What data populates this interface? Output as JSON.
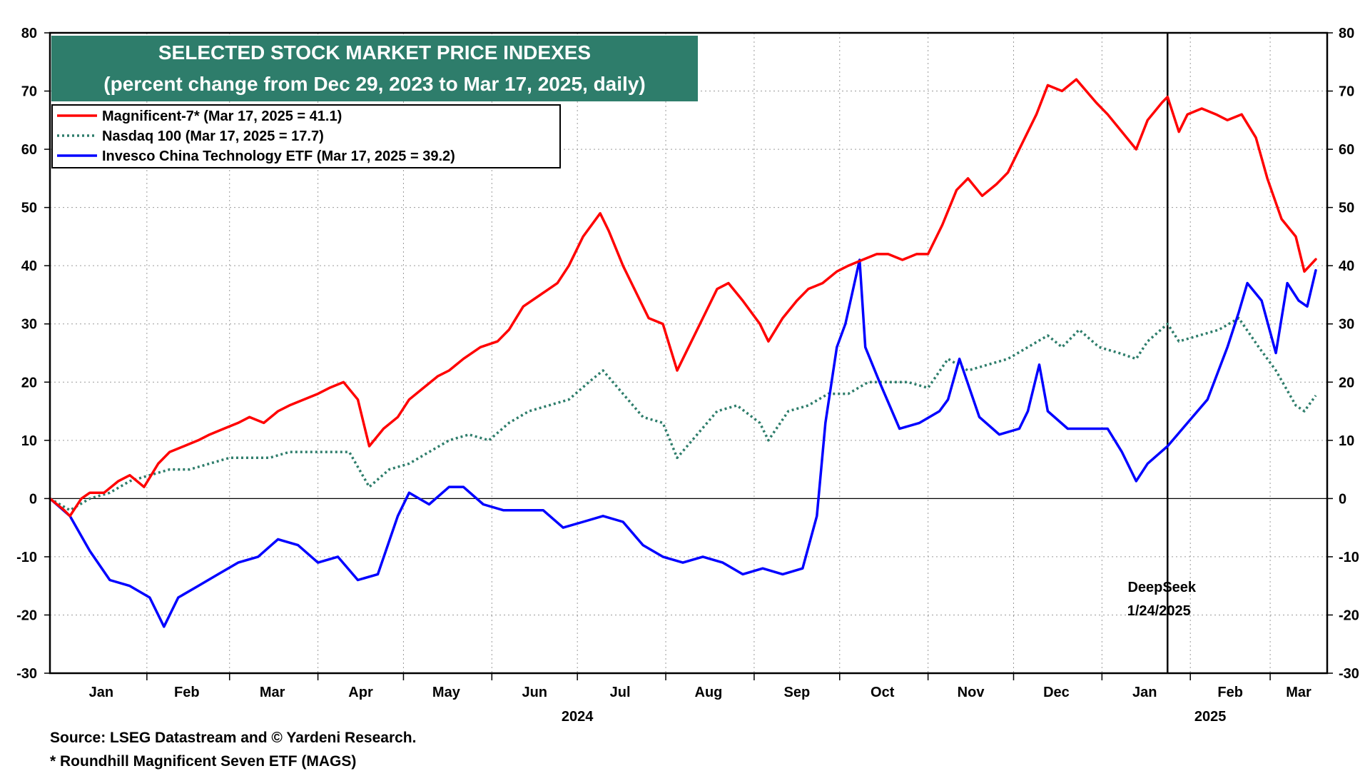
{
  "chart_data": {
    "type": "line",
    "title": "SELECTED STOCK MARKET PRICE INDEXES",
    "subtitle": "(percent change from Dec 29, 2023 to Mar 17, 2025, daily)",
    "ylim": [
      -30,
      80
    ],
    "yticks": [
      80,
      70,
      60,
      50,
      40,
      30,
      20,
      10,
      0,
      -10,
      -20,
      -30
    ],
    "x_range": [
      "2023-12-29",
      "2025-03-21"
    ],
    "month_labels": [
      {
        "label": "Jan",
        "date": "2024-01-16"
      },
      {
        "label": "Feb",
        "date": "2024-02-15"
      },
      {
        "label": "Mar",
        "date": "2024-03-16"
      },
      {
        "label": "Apr",
        "date": "2024-04-16"
      },
      {
        "label": "May",
        "date": "2024-05-16"
      },
      {
        "label": "Jun",
        "date": "2024-06-16"
      },
      {
        "label": "Jul",
        "date": "2024-07-16"
      },
      {
        "label": "Aug",
        "date": "2024-08-16"
      },
      {
        "label": "Sep",
        "date": "2024-09-16"
      },
      {
        "label": "Oct",
        "date": "2024-10-16"
      },
      {
        "label": "Nov",
        "date": "2024-11-16"
      },
      {
        "label": "Dec",
        "date": "2024-12-16"
      },
      {
        "label": "Jan",
        "date": "2025-01-16"
      },
      {
        "label": "Feb",
        "date": "2025-02-15"
      },
      {
        "label": "Mar",
        "date": "2025-03-11"
      }
    ],
    "year_labels": [
      {
        "label": "2024",
        "date": "2024-07-01"
      },
      {
        "label": "2025",
        "date": "2025-02-08"
      }
    ],
    "series": [
      {
        "name": "Magnificent-7* (Mar 17, 2025 = 41.1)",
        "color": "#ff0000",
        "style": "solid",
        "points": [
          [
            "2023-12-29",
            0
          ],
          [
            "2024-01-03",
            -2
          ],
          [
            "2024-01-05",
            -3
          ],
          [
            "2024-01-09",
            0
          ],
          [
            "2024-01-12",
            1
          ],
          [
            "2024-01-17",
            1
          ],
          [
            "2024-01-22",
            3
          ],
          [
            "2024-01-26",
            4
          ],
          [
            "2024-01-31",
            2
          ],
          [
            "2024-02-05",
            6
          ],
          [
            "2024-02-09",
            8
          ],
          [
            "2024-02-14",
            9
          ],
          [
            "2024-02-19",
            10
          ],
          [
            "2024-02-23",
            11
          ],
          [
            "2024-02-28",
            12
          ],
          [
            "2024-03-04",
            13
          ],
          [
            "2024-03-08",
            14
          ],
          [
            "2024-03-13",
            13
          ],
          [
            "2024-03-18",
            15
          ],
          [
            "2024-03-22",
            16
          ],
          [
            "2024-03-27",
            17
          ],
          [
            "2024-04-01",
            18
          ],
          [
            "2024-04-05",
            19
          ],
          [
            "2024-04-10",
            20
          ],
          [
            "2024-04-15",
            17
          ],
          [
            "2024-04-19",
            9
          ],
          [
            "2024-04-24",
            12
          ],
          [
            "2024-04-29",
            14
          ],
          [
            "2024-05-03",
            17
          ],
          [
            "2024-05-08",
            19
          ],
          [
            "2024-05-13",
            21
          ],
          [
            "2024-05-17",
            22
          ],
          [
            "2024-05-22",
            24
          ],
          [
            "2024-05-28",
            26
          ],
          [
            "2024-06-03",
            27
          ],
          [
            "2024-06-07",
            29
          ],
          [
            "2024-06-12",
            33
          ],
          [
            "2024-06-18",
            35
          ],
          [
            "2024-06-24",
            37
          ],
          [
            "2024-06-28",
            40
          ],
          [
            "2024-07-03",
            45
          ],
          [
            "2024-07-09",
            49
          ],
          [
            "2024-07-12",
            46
          ],
          [
            "2024-07-17",
            40
          ],
          [
            "2024-07-22",
            35
          ],
          [
            "2024-07-26",
            31
          ],
          [
            "2024-07-31",
            30
          ],
          [
            "2024-08-05",
            22
          ],
          [
            "2024-08-09",
            26
          ],
          [
            "2024-08-14",
            31
          ],
          [
            "2024-08-19",
            36
          ],
          [
            "2024-08-23",
            37
          ],
          [
            "2024-08-28",
            34
          ],
          [
            "2024-09-03",
            30
          ],
          [
            "2024-09-06",
            27
          ],
          [
            "2024-09-11",
            31
          ],
          [
            "2024-09-16",
            34
          ],
          [
            "2024-09-20",
            36
          ],
          [
            "2024-09-25",
            37
          ],
          [
            "2024-09-30",
            39
          ],
          [
            "2024-10-04",
            40
          ],
          [
            "2024-10-09",
            41
          ],
          [
            "2024-10-14",
            42
          ],
          [
            "2024-10-18",
            42
          ],
          [
            "2024-10-23",
            41
          ],
          [
            "2024-10-28",
            42
          ],
          [
            "2024-11-01",
            42
          ],
          [
            "2024-11-06",
            47
          ],
          [
            "2024-11-11",
            53
          ],
          [
            "2024-11-15",
            55
          ],
          [
            "2024-11-20",
            52
          ],
          [
            "2024-11-25",
            54
          ],
          [
            "2024-11-29",
            56
          ],
          [
            "2024-12-04",
            61
          ],
          [
            "2024-12-09",
            66
          ],
          [
            "2024-12-13",
            71
          ],
          [
            "2024-12-18",
            70
          ],
          [
            "2024-12-23",
            72
          ],
          [
            "2024-12-30",
            68
          ],
          [
            "2025-01-03",
            66
          ],
          [
            "2025-01-08",
            63
          ],
          [
            "2025-01-13",
            60
          ],
          [
            "2025-01-17",
            65
          ],
          [
            "2025-01-22",
            68
          ],
          [
            "2025-01-24",
            69
          ],
          [
            "2025-01-28",
            63
          ],
          [
            "2025-01-31",
            66
          ],
          [
            "2025-02-05",
            67
          ],
          [
            "2025-02-10",
            66
          ],
          [
            "2025-02-14",
            65
          ],
          [
            "2025-02-19",
            66
          ],
          [
            "2025-02-24",
            62
          ],
          [
            "2025-02-28",
            55
          ],
          [
            "2025-03-05",
            48
          ],
          [
            "2025-03-10",
            45
          ],
          [
            "2025-03-13",
            39
          ],
          [
            "2025-03-17",
            41.1
          ]
        ]
      },
      {
        "name": "Nasdaq 100 (Mar 17, 2025 = 17.7)",
        "color": "#2e7d6b",
        "style": "dotted",
        "points": [
          [
            "2023-12-29",
            0
          ],
          [
            "2024-01-05",
            -2
          ],
          [
            "2024-01-12",
            0
          ],
          [
            "2024-01-19",
            1
          ],
          [
            "2024-01-26",
            3
          ],
          [
            "2024-02-02",
            4
          ],
          [
            "2024-02-09",
            5
          ],
          [
            "2024-02-16",
            5
          ],
          [
            "2024-02-23",
            6
          ],
          [
            "2024-03-01",
            7
          ],
          [
            "2024-03-08",
            7
          ],
          [
            "2024-03-15",
            7
          ],
          [
            "2024-03-22",
            8
          ],
          [
            "2024-03-29",
            8
          ],
          [
            "2024-04-05",
            8
          ],
          [
            "2024-04-12",
            8
          ],
          [
            "2024-04-19",
            2
          ],
          [
            "2024-04-26",
            5
          ],
          [
            "2024-05-03",
            6
          ],
          [
            "2024-05-10",
            8
          ],
          [
            "2024-05-17",
            10
          ],
          [
            "2024-05-24",
            11
          ],
          [
            "2024-05-31",
            10
          ],
          [
            "2024-06-07",
            13
          ],
          [
            "2024-06-14",
            15
          ],
          [
            "2024-06-21",
            16
          ],
          [
            "2024-06-28",
            17
          ],
          [
            "2024-07-05",
            20
          ],
          [
            "2024-07-10",
            22
          ],
          [
            "2024-07-17",
            18
          ],
          [
            "2024-07-24",
            14
          ],
          [
            "2024-07-31",
            13
          ],
          [
            "2024-08-05",
            7
          ],
          [
            "2024-08-12",
            11
          ],
          [
            "2024-08-19",
            15
          ],
          [
            "2024-08-26",
            16
          ],
          [
            "2024-09-03",
            13
          ],
          [
            "2024-09-06",
            10
          ],
          [
            "2024-09-13",
            15
          ],
          [
            "2024-09-20",
            16
          ],
          [
            "2024-09-27",
            18
          ],
          [
            "2024-10-04",
            18
          ],
          [
            "2024-10-11",
            20
          ],
          [
            "2024-10-18",
            20
          ],
          [
            "2024-10-25",
            20
          ],
          [
            "2024-11-01",
            19
          ],
          [
            "2024-11-08",
            24
          ],
          [
            "2024-11-15",
            22
          ],
          [
            "2024-11-22",
            23
          ],
          [
            "2024-11-29",
            24
          ],
          [
            "2024-12-06",
            26
          ],
          [
            "2024-12-13",
            28
          ],
          [
            "2024-12-18",
            26
          ],
          [
            "2024-12-24",
            29
          ],
          [
            "2024-12-31",
            26
          ],
          [
            "2025-01-07",
            25
          ],
          [
            "2025-01-13",
            24
          ],
          [
            "2025-01-17",
            27
          ],
          [
            "2025-01-24",
            30
          ],
          [
            "2025-01-28",
            27
          ],
          [
            "2025-02-04",
            28
          ],
          [
            "2025-02-11",
            29
          ],
          [
            "2025-02-18",
            31
          ],
          [
            "2025-02-25",
            26
          ],
          [
            "2025-03-03",
            22
          ],
          [
            "2025-03-10",
            16
          ],
          [
            "2025-03-13",
            15
          ],
          [
            "2025-03-17",
            17.7
          ]
        ]
      },
      {
        "name": "Invesco China Technology ETF (Mar 17, 2025 = 39.2)",
        "color": "#0000ff",
        "style": "solid",
        "points": [
          [
            "2023-12-29",
            0
          ],
          [
            "2024-01-05",
            -3
          ],
          [
            "2024-01-12",
            -9
          ],
          [
            "2024-01-19",
            -14
          ],
          [
            "2024-01-26",
            -15
          ],
          [
            "2024-02-02",
            -17
          ],
          [
            "2024-02-07",
            -22
          ],
          [
            "2024-02-12",
            -17
          ],
          [
            "2024-02-19",
            -15
          ],
          [
            "2024-02-26",
            -13
          ],
          [
            "2024-03-04",
            -11
          ],
          [
            "2024-03-11",
            -10
          ],
          [
            "2024-03-18",
            -7
          ],
          [
            "2024-03-25",
            -8
          ],
          [
            "2024-04-01",
            -11
          ],
          [
            "2024-04-08",
            -10
          ],
          [
            "2024-04-15",
            -14
          ],
          [
            "2024-04-22",
            -13
          ],
          [
            "2024-04-29",
            -3
          ],
          [
            "2024-05-03",
            1
          ],
          [
            "2024-05-10",
            -1
          ],
          [
            "2024-05-17",
            2
          ],
          [
            "2024-05-22",
            2
          ],
          [
            "2024-05-29",
            -1
          ],
          [
            "2024-06-05",
            -2
          ],
          [
            "2024-06-12",
            -2
          ],
          [
            "2024-06-19",
            -2
          ],
          [
            "2024-06-26",
            -5
          ],
          [
            "2024-07-03",
            -4
          ],
          [
            "2024-07-10",
            -3
          ],
          [
            "2024-07-17",
            -4
          ],
          [
            "2024-07-24",
            -8
          ],
          [
            "2024-07-31",
            -10
          ],
          [
            "2024-08-07",
            -11
          ],
          [
            "2024-08-14",
            -10
          ],
          [
            "2024-08-21",
            -11
          ],
          [
            "2024-08-28",
            -13
          ],
          [
            "2024-09-04",
            -12
          ],
          [
            "2024-09-11",
            -13
          ],
          [
            "2024-09-18",
            -12
          ],
          [
            "2024-09-23",
            -3
          ],
          [
            "2024-09-26",
            13
          ],
          [
            "2024-09-30",
            26
          ],
          [
            "2024-10-03",
            30
          ],
          [
            "2024-10-08",
            41
          ],
          [
            "2024-10-10",
            26
          ],
          [
            "2024-10-15",
            20
          ],
          [
            "2024-10-22",
            12
          ],
          [
            "2024-10-29",
            13
          ],
          [
            "2024-11-05",
            15
          ],
          [
            "2024-11-08",
            17
          ],
          [
            "2024-11-12",
            24
          ],
          [
            "2024-11-19",
            14
          ],
          [
            "2024-11-26",
            11
          ],
          [
            "2024-12-03",
            12
          ],
          [
            "2024-12-06",
            15
          ],
          [
            "2024-12-10",
            23
          ],
          [
            "2024-12-13",
            15
          ],
          [
            "2024-12-20",
            12
          ],
          [
            "2024-12-27",
            12
          ],
          [
            "2025-01-03",
            12
          ],
          [
            "2025-01-08",
            8
          ],
          [
            "2025-01-13",
            3
          ],
          [
            "2025-01-17",
            6
          ],
          [
            "2025-01-24",
            9
          ],
          [
            "2025-01-31",
            13
          ],
          [
            "2025-02-07",
            17
          ],
          [
            "2025-02-14",
            26
          ],
          [
            "2025-02-18",
            32
          ],
          [
            "2025-02-21",
            37
          ],
          [
            "2025-02-26",
            34
          ],
          [
            "2025-03-03",
            25
          ],
          [
            "2025-03-07",
            37
          ],
          [
            "2025-03-11",
            34
          ],
          [
            "2025-03-14",
            33
          ],
          [
            "2025-03-17",
            39.2
          ]
        ]
      }
    ],
    "reference_line": {
      "date": "2025-01-24",
      "label_line1": "DeepSeek",
      "label_line2": "1/24/2025"
    }
  },
  "footer": {
    "source": "Source: LSEG Datastream and © Yardeni Research.",
    "note": "* Roundhill Magnificent Seven ETF (MAGS)"
  },
  "colors": {
    "title_bg": "#2e7d6b",
    "magnificent7": "#ff0000",
    "nasdaq100": "#2e7d6b",
    "china_tech": "#0000ff"
  }
}
